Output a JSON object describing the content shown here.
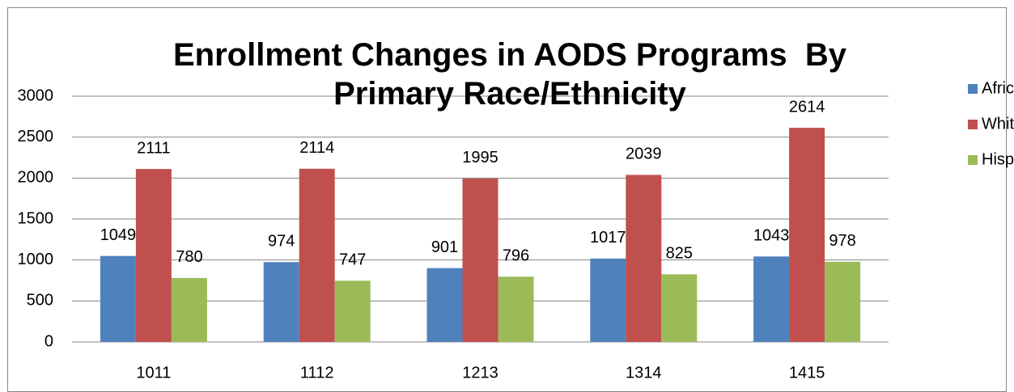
{
  "chart_data": {
    "type": "bar",
    "title": "Enrollment Changes in AODS Programs  By Primary Race/Ethnicity",
    "categories": [
      "1011",
      "1112",
      "1213",
      "1314",
      "1415"
    ],
    "series": [
      {
        "name": "African Am",
        "color": "#4f81bd",
        "values": [
          1049,
          974,
          901,
          1017,
          1043
        ]
      },
      {
        "name": "White",
        "color": "#c0504d",
        "values": [
          2111,
          2114,
          1995,
          2039,
          2614
        ]
      },
      {
        "name": "Hispanic",
        "color": "#9bbb59",
        "values": [
          780,
          747,
          796,
          825,
          978
        ]
      }
    ],
    "ylim": [
      0,
      3000
    ],
    "yticks": [
      0,
      500,
      1000,
      1500,
      2000,
      2500,
      3000
    ],
    "grid": true,
    "legend": "right"
  }
}
